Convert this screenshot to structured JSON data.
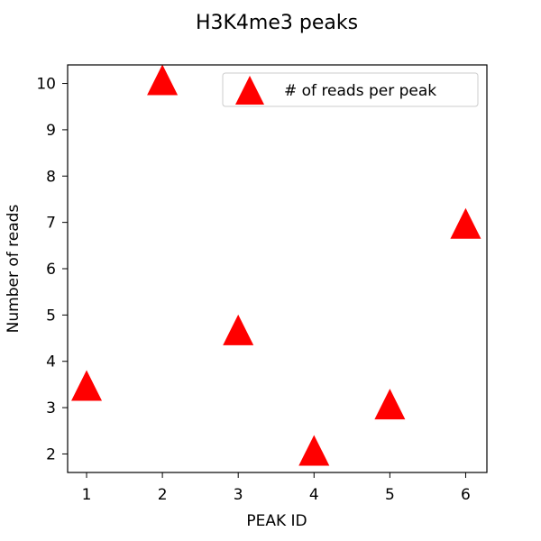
{
  "chart_data": {
    "type": "scatter",
    "title": "H3K4me3 peaks",
    "xlabel": "PEAK ID",
    "ylabel": "Number of reads",
    "x": [
      1,
      2,
      3,
      4,
      5,
      6
    ],
    "y": [
      3.4,
      10,
      4.6,
      2,
      3,
      6.9
    ],
    "xlim": [
      0.75,
      6.28
    ],
    "ylim": [
      1.6,
      10.4
    ],
    "xticks": [
      1,
      2,
      3,
      4,
      5,
      6
    ],
    "yticks": [
      2,
      3,
      4,
      5,
      6,
      7,
      8,
      9,
      10
    ],
    "xtick_labels": [
      "1",
      "2",
      "3",
      "4",
      "5",
      "6"
    ],
    "ytick_labels": [
      "2",
      "3",
      "4",
      "5",
      "6",
      "7",
      "8",
      "9",
      "10"
    ],
    "series": [
      {
        "name": "# of reads per peak",
        "marker": "triangle-up",
        "color": "#ff0000"
      }
    ],
    "legend": {
      "placement": "top-right"
    },
    "grid": false
  }
}
